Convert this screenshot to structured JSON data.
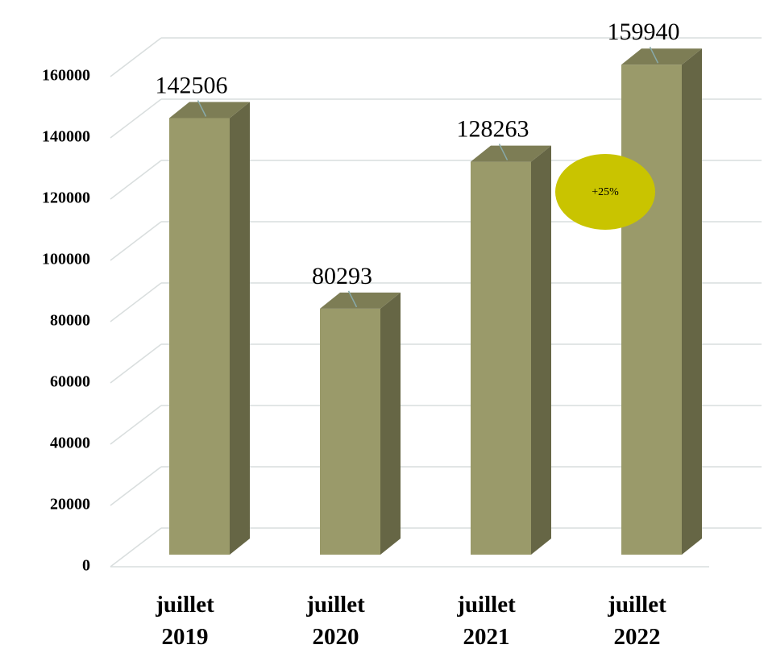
{
  "chart_data": {
    "type": "bar3d",
    "categories": [
      "juillet 2019",
      "juillet 2020",
      "juillet 2021",
      "juillet 2022"
    ],
    "values": [
      142506,
      80293,
      128263,
      159940
    ],
    "color": "#9a9a6a",
    "annotation": "+25%",
    "annotation_color": "#c9c400",
    "ylim": [
      0,
      160000
    ],
    "yticks": [
      0,
      20000,
      40000,
      60000,
      80000,
      100000,
      120000,
      140000,
      160000
    ],
    "grid": true
  }
}
